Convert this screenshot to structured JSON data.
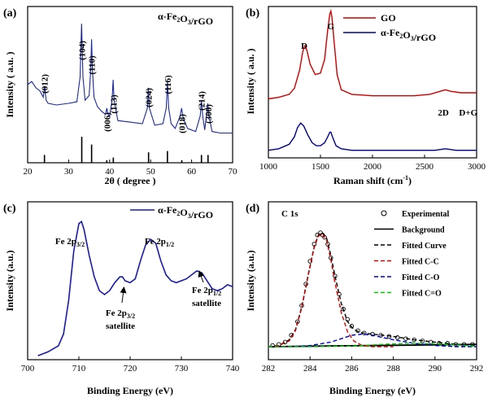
{
  "chart_data": [
    {
      "panel": "(a)",
      "type": "line",
      "title": "",
      "legend_text": "α-Fe2O3/rGO",
      "xlabel": "2θ ( degree )",
      "ylabel": "Intensity ( a.u. )",
      "xlim": [
        20,
        70
      ],
      "xticks": [
        20,
        30,
        40,
        50,
        60,
        70
      ],
      "series": [
        {
          "values_x": [
            20,
            21,
            22,
            23,
            23.8,
            24.15,
            24.5,
            25,
            27,
            30,
            32,
            32.8,
            33.15,
            33.5,
            34,
            35,
            35.4,
            35.6,
            35.8,
            36.2,
            37,
            38,
            39,
            39.3,
            39.6,
            40,
            40.6,
            40.85,
            41.1,
            42,
            45,
            48,
            49.2,
            49.45,
            49.7,
            51,
            53,
            53.8,
            54.1,
            54.4,
            55,
            56,
            57.2,
            57.55,
            57.9,
            59,
            61,
            62.1,
            62.4,
            62.7,
            63.2,
            63.7,
            63.95,
            64.2,
            65,
            67,
            70
          ],
          "values_y": [
            0.5,
            0.52,
            0.48,
            0.46,
            0.42,
            0.49,
            0.4,
            0.38,
            0.37,
            0.38,
            0.39,
            0.55,
            0.89,
            0.55,
            0.4,
            0.43,
            0.6,
            0.79,
            0.6,
            0.42,
            0.36,
            0.33,
            0.31,
            0.35,
            0.31,
            0.3,
            0.4,
            0.53,
            0.4,
            0.27,
            0.26,
            0.25,
            0.35,
            0.48,
            0.35,
            0.24,
            0.25,
            0.35,
            0.52,
            0.35,
            0.25,
            0.22,
            0.3,
            0.35,
            0.29,
            0.22,
            0.2,
            0.3,
            0.4,
            0.3,
            0.21,
            0.32,
            0.38,
            0.3,
            0.2,
            0.19,
            0.19
          ]
        }
      ],
      "peak_labels": [
        {
          "label": "(012)",
          "x": 24.1
        },
        {
          "label": "(104)",
          "x": 33.2
        },
        {
          "label": "(110)",
          "x": 35.6
        },
        {
          "label": "(006)",
          "x": 39.3
        },
        {
          "label": "(113)",
          "x": 40.9
        },
        {
          "label": "(024)",
          "x": 49.5
        },
        {
          "label": "(116)",
          "x": 54.1
        },
        {
          "label": "(018)",
          "x": 57.6
        },
        {
          "label": "(214)",
          "x": 62.4
        },
        {
          "label": "(300)",
          "x": 64.0
        }
      ],
      "reference_lines": [
        {
          "x": 24.1,
          "h": 0.3
        },
        {
          "x": 33.2,
          "h": 1.0
        },
        {
          "x": 35.6,
          "h": 0.7
        },
        {
          "x": 39.3,
          "h": 0.1
        },
        {
          "x": 40.9,
          "h": 0.2
        },
        {
          "x": 49.5,
          "h": 0.4
        },
        {
          "x": 54.1,
          "h": 0.45
        },
        {
          "x": 57.6,
          "h": 0.1
        },
        {
          "x": 62.4,
          "h": 0.3
        },
        {
          "x": 64.0,
          "h": 0.3
        }
      ]
    },
    {
      "panel": "(b)",
      "type": "line",
      "title": "",
      "xlabel": "Raman shift (cm-1)",
      "ylabel": "Intensity ( a.u. )",
      "xlim": [
        1000,
        3000
      ],
      "xticks": [
        1000,
        1500,
        2000,
        2500,
        3000
      ],
      "series": [
        {
          "name": "GO",
          "color": "#cc0000",
          "values_x": [
            1000,
            1100,
            1200,
            1250,
            1300,
            1330,
            1350,
            1370,
            1400,
            1450,
            1500,
            1540,
            1570,
            1590,
            1600,
            1610,
            1630,
            1660,
            1700,
            1800,
            2000,
            2200,
            2400,
            2550,
            2650,
            2700,
            2750,
            2850,
            2950,
            3000
          ],
          "values_y": [
            0.39,
            0.4,
            0.42,
            0.46,
            0.58,
            0.7,
            0.74,
            0.71,
            0.62,
            0.55,
            0.56,
            0.65,
            0.85,
            0.95,
            0.97,
            0.93,
            0.78,
            0.55,
            0.45,
            0.42,
            0.41,
            0.41,
            0.41,
            0.42,
            0.44,
            0.45,
            0.44,
            0.43,
            0.43,
            0.43
          ]
        },
        {
          "name": "α-Fe2O3/rGO",
          "color": "#00008b",
          "values_x": [
            1000,
            1100,
            1200,
            1250,
            1280,
            1310,
            1340,
            1380,
            1420,
            1460,
            1500,
            1540,
            1570,
            1590,
            1600,
            1620,
            1650,
            1700,
            1800,
            2000,
            2200,
            2400,
            2600,
            2700,
            2800,
            3000
          ],
          "values_y": [
            0.05,
            0.06,
            0.09,
            0.14,
            0.2,
            0.23,
            0.21,
            0.15,
            0.1,
            0.08,
            0.08,
            0.1,
            0.14,
            0.17,
            0.17,
            0.13,
            0.08,
            0.06,
            0.05,
            0.05,
            0.05,
            0.05,
            0.05,
            0.06,
            0.05,
            0.05
          ]
        }
      ],
      "peak_labels": [
        {
          "label": "D",
          "x": 1345
        },
        {
          "label": "G",
          "x": 1600
        },
        {
          "label": "2D",
          "x": 2680
        },
        {
          "label": "D+G",
          "x": 2920
        }
      ]
    },
    {
      "panel": "(c)",
      "type": "line",
      "title": "",
      "xlabel": "Binding Energy (eV)",
      "ylabel": "Intensity (a.u.)",
      "xlim": [
        700,
        740
      ],
      "xticks": [
        700,
        710,
        720,
        730,
        740
      ],
      "series": [
        {
          "name": "α-Fe2O3/rGO",
          "color": "#1a1aaa",
          "values_x": [
            702,
            704,
            706,
            707,
            708,
            709,
            710,
            710.5,
            711,
            712,
            713,
            714,
            715,
            716,
            717,
            718,
            718.5,
            719,
            720,
            721,
            722,
            723,
            724,
            725,
            726,
            727,
            728,
            729,
            730,
            731,
            732,
            733,
            734,
            735,
            736,
            737,
            738,
            739,
            740
          ],
          "values_y": [
            0.02,
            0.04,
            0.07,
            0.13,
            0.3,
            0.55,
            0.69,
            0.7,
            0.66,
            0.53,
            0.42,
            0.35,
            0.33,
            0.35,
            0.39,
            0.42,
            0.42,
            0.4,
            0.39,
            0.41,
            0.5,
            0.58,
            0.61,
            0.59,
            0.5,
            0.43,
            0.4,
            0.39,
            0.4,
            0.41,
            0.43,
            0.45,
            0.44,
            0.4,
            0.36,
            0.35,
            0.36,
            0.38,
            0.37
          ]
        }
      ],
      "annotations": [
        {
          "label": "Fe 2p3/2",
          "x": 710.5
        },
        {
          "label": "Fe 2p1/2",
          "x": 724
        },
        {
          "label": "Fe 2p3/2 satellite",
          "x": 719
        },
        {
          "label": "Fe 2p1/2 satellite",
          "x": 733.5
        }
      ]
    },
    {
      "panel": "(d)",
      "type": "line",
      "title": "",
      "xlabel": "Binding Energy (eV)",
      "ylabel": "Intensity (a.u.)",
      "xlim": [
        282,
        292
      ],
      "xticks": [
        282,
        284,
        286,
        288,
        290,
        292
      ],
      "annotation": "C 1s",
      "legend": [
        {
          "name": "Experimental",
          "style": "open-circle",
          "color": "#000000"
        },
        {
          "name": "Background",
          "style": "solid",
          "color": "#000000"
        },
        {
          "name": "Fitted Curve",
          "style": "dashed",
          "color": "#000000"
        },
        {
          "name": "Fitted C-C",
          "style": "dashed",
          "color": "#dd0000"
        },
        {
          "name": "Fitted C-O",
          "style": "dashed",
          "color": "#0000cc"
        },
        {
          "name": "Fitted C=O",
          "style": "dashed",
          "color": "#00cc00"
        }
      ],
      "series": [
        {
          "name": "Experimental",
          "values_x": [
            282.2,
            282.5,
            282.8,
            283.1,
            283.4,
            283.6,
            283.8,
            284.0,
            284.2,
            284.35,
            284.5,
            284.6,
            284.7,
            284.85,
            285.0,
            285.2,
            285.4,
            285.6,
            285.8,
            286.0,
            286.3,
            286.6,
            287.0,
            287.4,
            287.8,
            288.2,
            288.6,
            289.0,
            289.4,
            289.8,
            290.2,
            290.6,
            291.0,
            291.4,
            291.8
          ],
          "values_y": [
            0.01,
            0.02,
            0.04,
            0.1,
            0.22,
            0.36,
            0.55,
            0.75,
            0.9,
            0.98,
            1.0,
            0.98,
            0.96,
            0.9,
            0.78,
            0.62,
            0.46,
            0.33,
            0.24,
            0.18,
            0.14,
            0.12,
            0.11,
            0.1,
            0.09,
            0.08,
            0.07,
            0.06,
            0.05,
            0.04,
            0.03,
            0.03,
            0.02,
            0.02,
            0.02
          ]
        },
        {
          "name": "Background",
          "values_x": [
            282,
            292
          ],
          "values_y": [
            0.0,
            0.02
          ]
        },
        {
          "name": "Fitted Curve",
          "values_x": [
            282.0,
            282.5,
            283.0,
            283.3,
            283.6,
            283.9,
            284.2,
            284.4,
            284.6,
            284.8,
            285.0,
            285.2,
            285.5,
            285.8,
            286.1,
            286.5,
            287,
            287.5,
            288,
            289,
            290,
            291,
            292
          ],
          "values_y": [
            0.0,
            0.01,
            0.06,
            0.15,
            0.35,
            0.62,
            0.88,
            0.98,
            1.0,
            0.95,
            0.8,
            0.62,
            0.38,
            0.22,
            0.15,
            0.12,
            0.11,
            0.1,
            0.09,
            0.06,
            0.04,
            0.02,
            0.01
          ]
        },
        {
          "name": "Fitted C-C",
          "values_x": [
            282.0,
            282.5,
            283.0,
            283.3,
            283.6,
            283.9,
            284.2,
            284.4,
            284.6,
            284.8,
            285.0,
            285.2,
            285.5,
            285.8,
            286.1,
            286.5,
            287,
            288
          ],
          "values_y": [
            0.0,
            0.01,
            0.05,
            0.14,
            0.34,
            0.61,
            0.87,
            0.97,
            0.99,
            0.93,
            0.76,
            0.56,
            0.3,
            0.13,
            0.05,
            0.01,
            0.0,
            0.0
          ]
        },
        {
          "name": "Fitted C-O",
          "values_x": [
            282,
            283,
            284,
            285,
            285.5,
            286,
            286.5,
            287,
            287.5,
            288,
            289,
            290,
            291,
            292
          ],
          "values_y": [
            0.0,
            0.0,
            0.01,
            0.04,
            0.07,
            0.1,
            0.11,
            0.1,
            0.08,
            0.06,
            0.03,
            0.01,
            0.0,
            0.0
          ]
        },
        {
          "name": "Fitted C=O",
          "values_x": [
            282,
            284,
            286,
            287,
            288,
            289,
            290,
            291,
            292
          ],
          "values_y": [
            0.0,
            0.0,
            0.005,
            0.015,
            0.025,
            0.03,
            0.025,
            0.015,
            0.005
          ]
        }
      ]
    }
  ]
}
